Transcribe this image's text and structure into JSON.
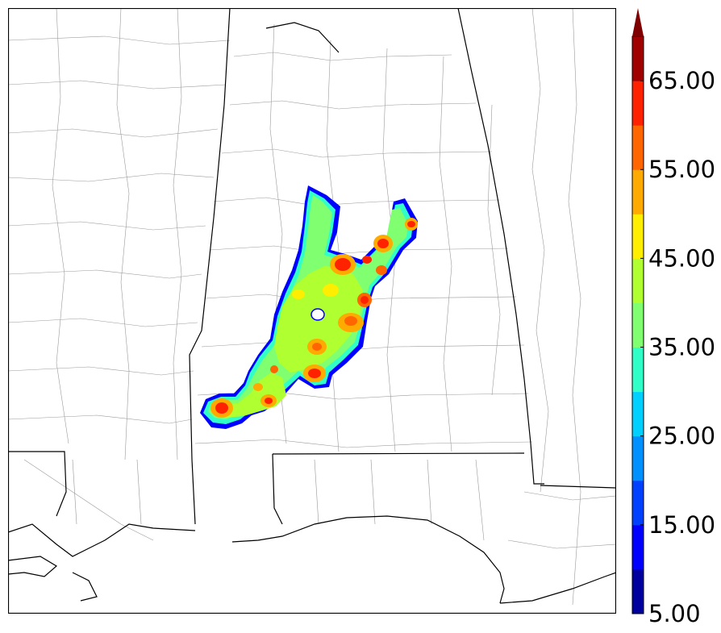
{
  "colorbar": {
    "tick_labels": [
      "5.00",
      "15.00",
      "25.00",
      "35.00",
      "45.00",
      "55.00",
      "65.00"
    ],
    "min": 5,
    "max": 70,
    "step": 5,
    "extend": "max",
    "colors": [
      "#00009f",
      "#0000ff",
      "#0040ff",
      "#0090ff",
      "#00d0ff",
      "#30ffc8",
      "#80ff70",
      "#b0ff30",
      "#ffee00",
      "#ffaa00",
      "#ff6600",
      "#ff2200",
      "#a00000"
    ],
    "overflow_color": "#7f0000"
  },
  "map": {
    "region": "Alabama and surrounding states",
    "feature": "filled contour field of reflectivity-like values over central Alabama"
  }
}
